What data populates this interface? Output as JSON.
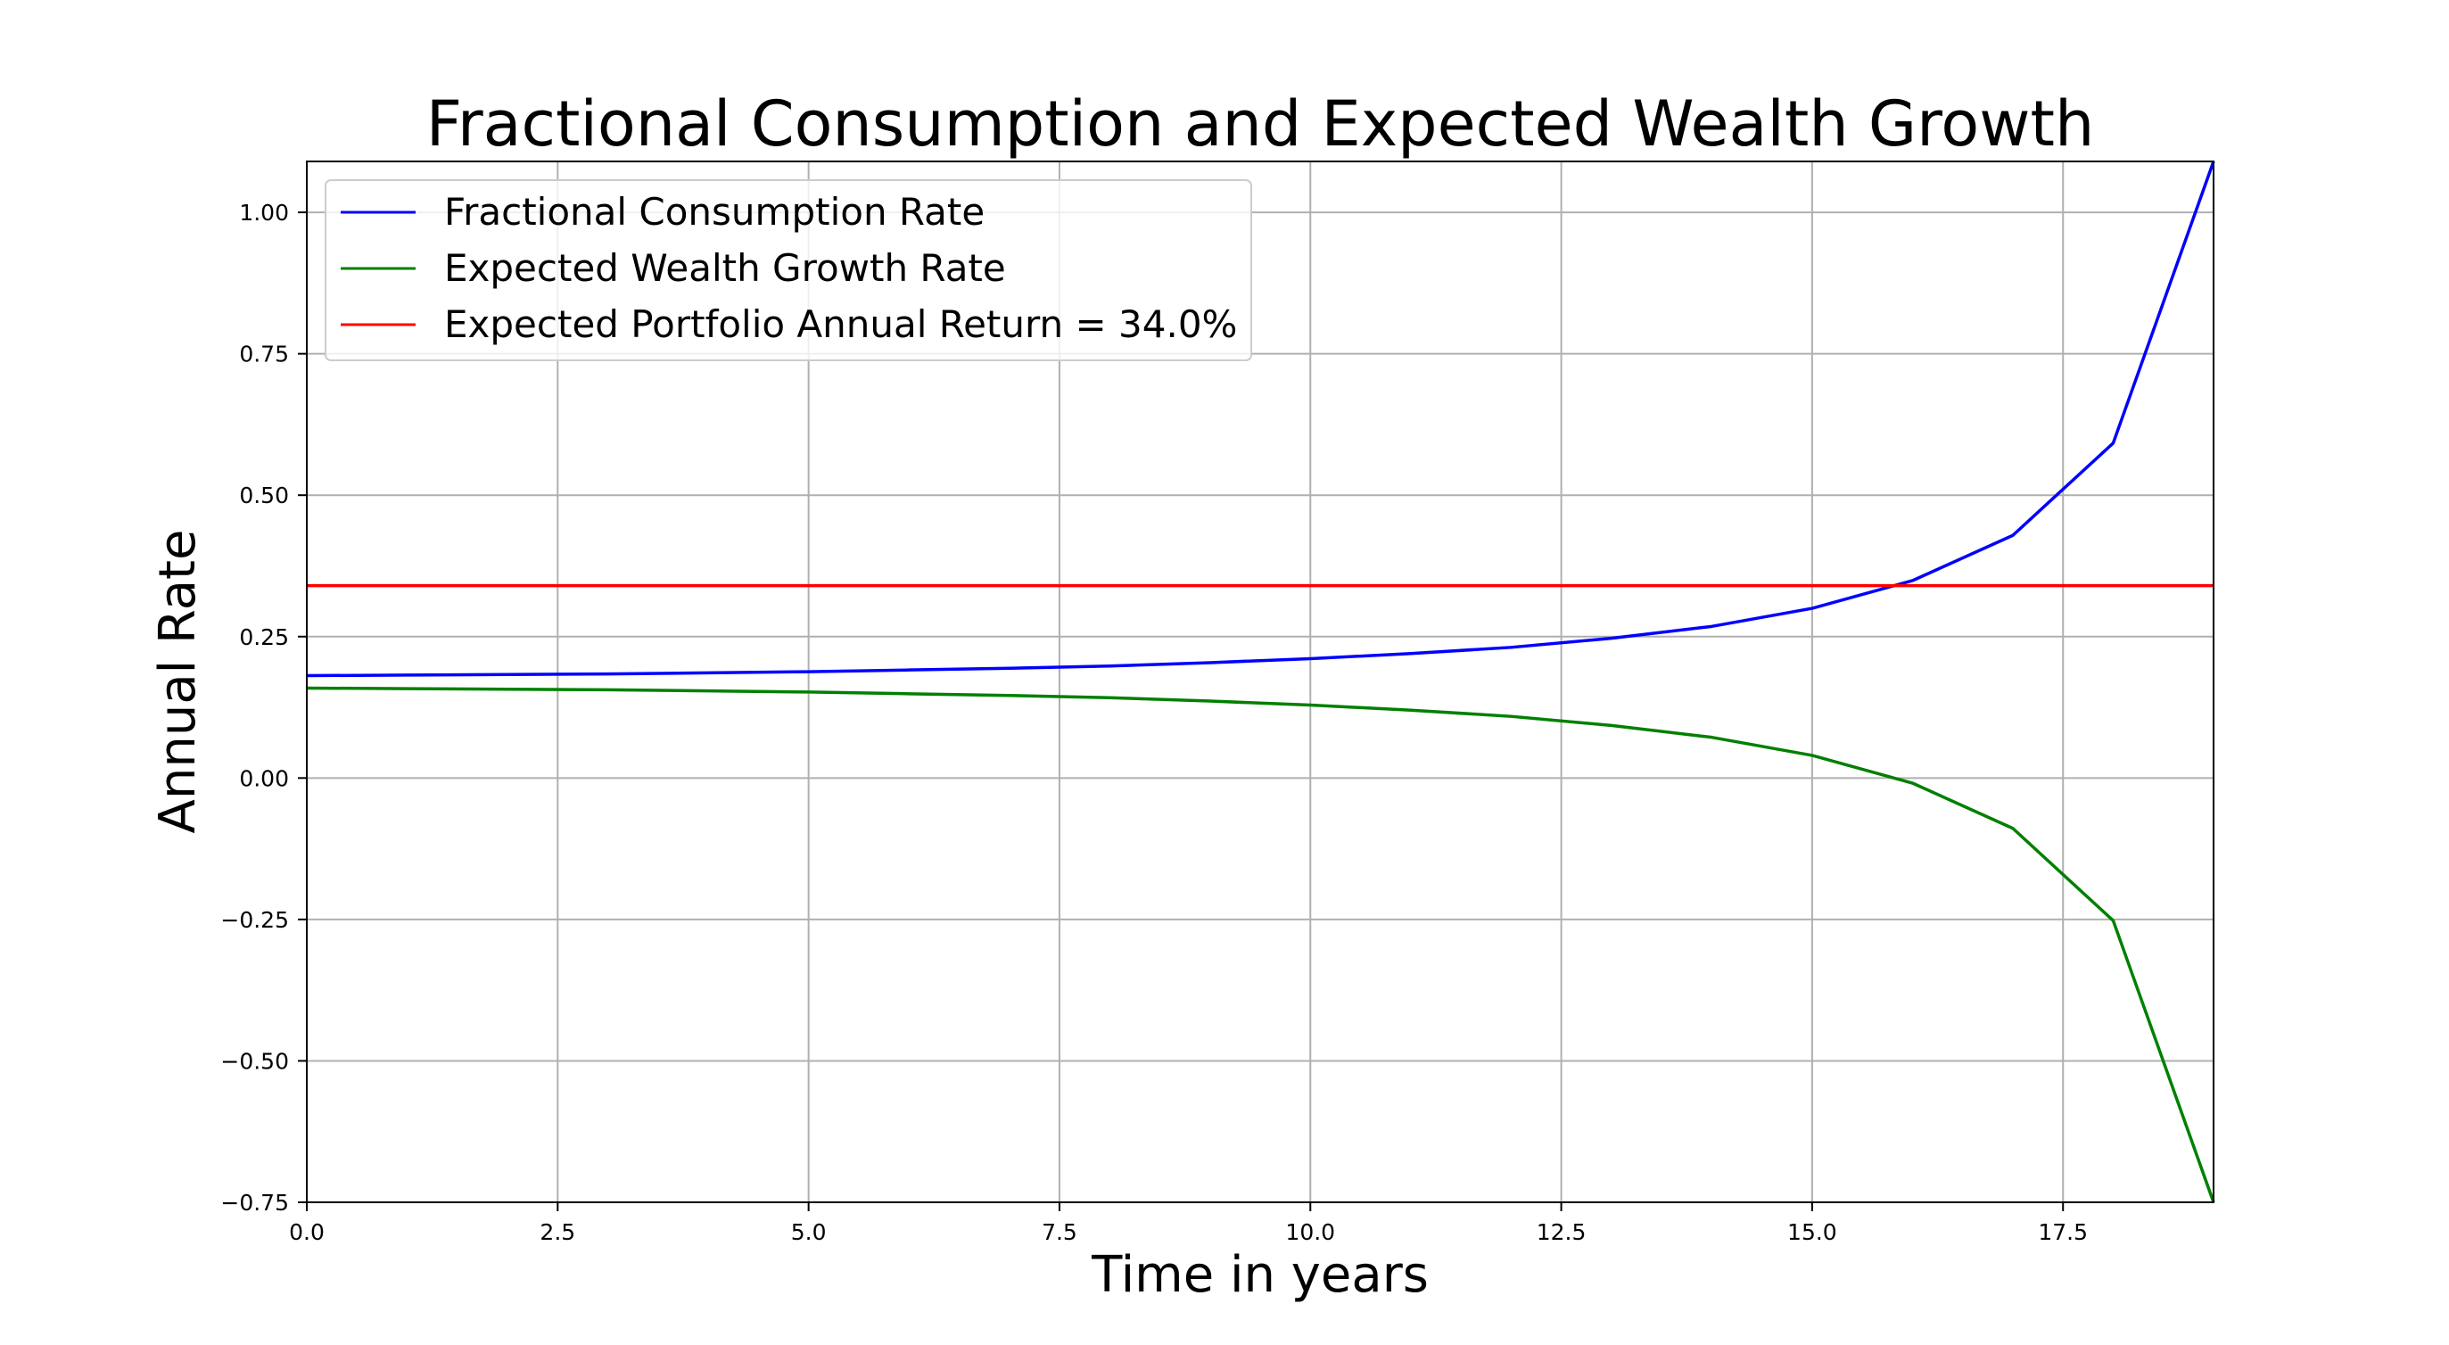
{
  "chart_data": {
    "type": "line",
    "title": "Fractional Consumption and Expected Wealth Growth",
    "xlabel": "Time in years",
    "ylabel": "Annual Rate",
    "xlim": [
      0,
      19
    ],
    "ylim": [
      -0.75,
      1.09
    ],
    "xticks": [
      0,
      2.5,
      5,
      7.5,
      10,
      12.5,
      15,
      17.5
    ],
    "xtick_labels": [
      "0.0",
      "2.5",
      "5.0",
      "7.5",
      "10.0",
      "12.5",
      "15.0",
      "17.5"
    ],
    "yticks": [
      -0.75,
      -0.5,
      -0.25,
      0,
      0.25,
      0.5,
      0.75,
      1.0
    ],
    "ytick_labels": [
      "−0.75",
      "−0.50",
      "−0.25",
      "0.00",
      "0.25",
      "0.50",
      "0.75",
      "1.00"
    ],
    "grid": true,
    "legend_position": "top-left",
    "x": [
      0,
      1,
      2,
      3,
      4,
      5,
      6,
      7,
      8,
      9,
      10,
      11,
      12,
      13,
      14,
      15,
      16,
      17,
      18,
      19
    ],
    "series": [
      {
        "name": "Fractional Consumption Rate",
        "color": "#0000ff",
        "values": [
          0.181,
          0.182,
          0.183,
          0.184,
          0.186,
          0.188,
          0.191,
          0.194,
          0.198,
          0.204,
          0.211,
          0.22,
          0.231,
          0.247,
          0.268,
          0.3,
          0.349,
          0.429,
          0.592,
          1.09
        ]
      },
      {
        "name": "Expected Wealth Growth Rate",
        "color": "#008000",
        "values": [
          0.159,
          0.158,
          0.157,
          0.156,
          0.154,
          0.152,
          0.149,
          0.146,
          0.142,
          0.136,
          0.129,
          0.12,
          0.109,
          0.093,
          0.072,
          0.04,
          -0.009,
          -0.089,
          -0.252,
          -0.75
        ]
      },
      {
        "name": "Expected Portfolio Annual Return = 34.0%",
        "color": "#ff0000",
        "constant": 0.34
      }
    ]
  }
}
